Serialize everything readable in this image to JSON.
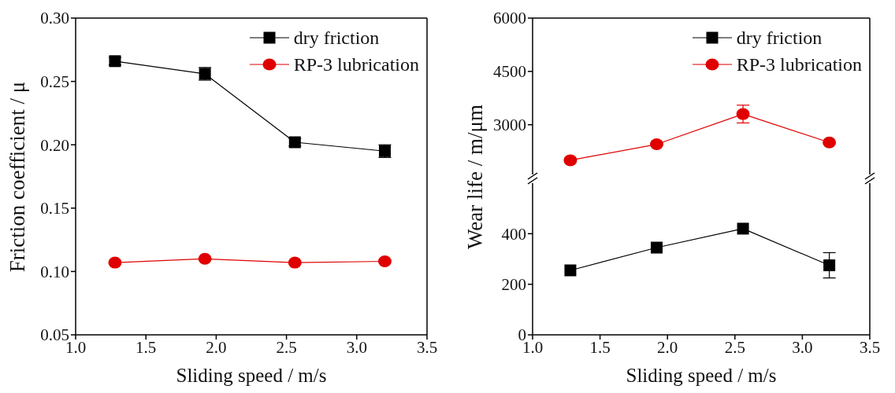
{
  "chart_data": [
    {
      "type": "line",
      "xlabel": "Sliding speed / m/s",
      "ylabel": "Friction coefficient / μ",
      "x": [
        1.28,
        1.92,
        2.56,
        3.2
      ],
      "xlim": [
        1.0,
        3.5
      ],
      "xticks": [
        {
          "value": 1,
          "label": "1.0"
        },
        1.5,
        {
          "value": 2,
          "label": "2.0"
        },
        2.5,
        {
          "value": 3,
          "label": "3.0"
        },
        3.5
      ],
      "ylim": [
        0.05,
        0.3
      ],
      "yticks": [
        0.05,
        {
          "value": 0.1,
          "label": "0.10"
        },
        0.15,
        {
          "value": 0.2,
          "label": "0.20"
        },
        0.25,
        {
          "value": 0.3,
          "label": "0.30"
        }
      ],
      "legend": "top right",
      "grid": false,
      "series": [
        {
          "name": "dry friction",
          "color": "#000000",
          "marker": "square",
          "values": [
            0.266,
            0.256,
            0.202,
            0.195
          ],
          "errors": [
            0.003,
            0.005,
            0.003,
            0.005
          ]
        },
        {
          "name": "RP-3 lubrication",
          "color": "#e00000",
          "marker": "circle",
          "values": [
            0.107,
            0.11,
            0.107,
            0.108
          ]
        }
      ]
    },
    {
      "type": "line",
      "ylabel": "Wear life / m/μm",
      "x": [
        1.28,
        1.92,
        2.56,
        3.2
      ],
      "xlim": [
        1.0,
        3.5
      ],
      "ylim": [
        1600,
        6000
      ],
      "yticks": [
        3000,
        4500,
        6000
      ],
      "legend": "top right",
      "grid": false,
      "tick_labels": "y",
      "series": [
        {
          "name": "dry friction",
          "color": "#000000",
          "marker": "square",
          "values": [
            null,
            null,
            null,
            null
          ]
        },
        {
          "name": "RP-3 lubrication",
          "color": "#e00000",
          "marker": "circle",
          "values": [
            2000,
            2450,
            3300,
            2500
          ],
          "errors": [
            null,
            null,
            250,
            null
          ]
        }
      ]
    },
    {
      "type": "line",
      "xlabel": "Sliding speed / m/s",
      "x": [
        1.28,
        1.92,
        2.56,
        3.2
      ],
      "xlim": [
        1.0,
        3.5
      ],
      "xticks": [
        {
          "value": 1,
          "label": "1.0"
        },
        1.5,
        {
          "value": 2,
          "label": "2.0"
        },
        2.5,
        {
          "value": 3,
          "label": "3.0"
        },
        3.5
      ],
      "ylim": [
        0,
        600
      ],
      "yticks": [
        0,
        200,
        400
      ],
      "grid": false,
      "series": [
        {
          "color": "#000000",
          "marker": "square",
          "values": [
            255,
            345,
            420,
            275
          ],
          "errors": [
            null,
            null,
            null,
            50
          ]
        }
      ]
    }
  ]
}
